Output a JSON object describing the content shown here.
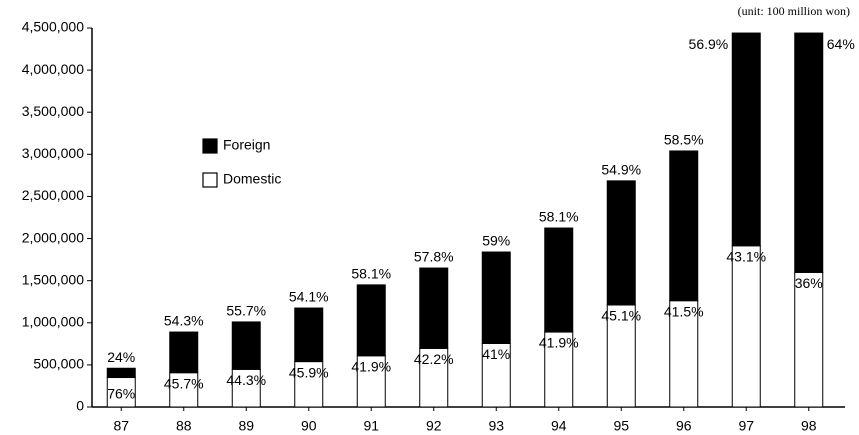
{
  "chart_data": {
    "type": "stacked_bar",
    "note": "(unit: 100 million won)",
    "categories": [
      "87",
      "88",
      "89",
      "90",
      "91",
      "92",
      "93",
      "94",
      "95",
      "96",
      "97",
      "98"
    ],
    "series": [
      {
        "name": "Domestic",
        "color": "#ffffff",
        "values": [
          350000,
          407000,
          447000,
          539000,
          608000,
          696000,
          754000,
          890000,
          1211000,
          1262000,
          1914000,
          1598000
        ],
        "labels": [
          "76%",
          "45.7%",
          "44.3%",
          "45.9%",
          "41.9%",
          "42.2%",
          "41%",
          "41.9%",
          "45.1%",
          "41.5%",
          "43.1%",
          "36%"
        ]
      },
      {
        "name": "Foreign",
        "color": "#000000",
        "values": [
          110000,
          483000,
          563000,
          636000,
          842000,
          954000,
          1086000,
          1235000,
          1474000,
          1778000,
          2526000,
          2842000
        ],
        "labels": [
          "24%",
          "54.3%",
          "55.7%",
          "54.1%",
          "58.1%",
          "57.8%",
          "59%",
          "58.1%",
          "54.9%",
          "58.5%",
          "56.9%",
          "64%"
        ]
      }
    ],
    "ylim": [
      0,
      4500000
    ],
    "yticks": [
      0,
      {
        "value": 500000,
        "label": "500,000"
      },
      {
        "value": 1000000,
        "label": "1,000,000"
      },
      {
        "value": 1500000,
        "label": "1,500,000"
      },
      {
        "value": 2000000,
        "label": "2,000,000"
      },
      {
        "value": 2500000,
        "label": "2,500,000"
      },
      {
        "value": 3000000,
        "label": "3,000,000"
      },
      {
        "value": 3500000,
        "label": "3,500,000"
      },
      {
        "value": 4000000,
        "label": "4,000,000"
      },
      {
        "value": 4500000,
        "label": "4,500,000"
      }
    ],
    "legend": "upper left",
    "grid": false
  }
}
